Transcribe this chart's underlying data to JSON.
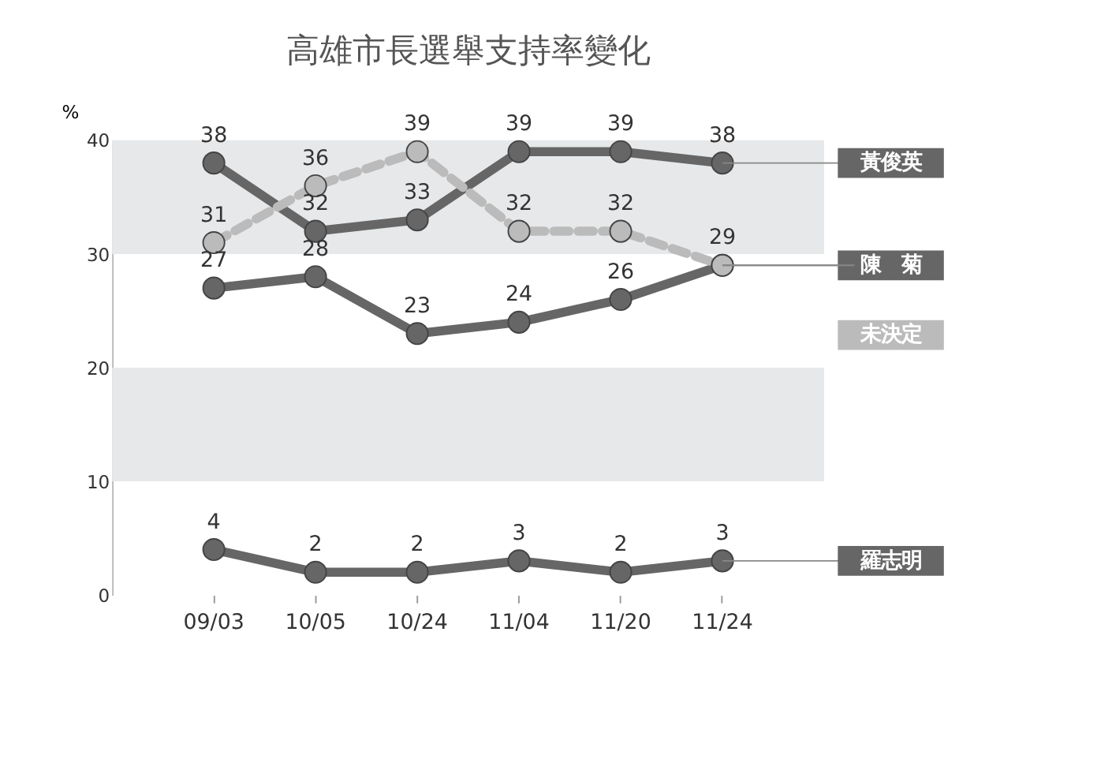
{
  "chart_data": {
    "type": "line",
    "title": "高雄市長選舉支持率變化",
    "ylabel": "%",
    "categories": [
      "09/03",
      "10/05",
      "10/24",
      "11/04",
      "11/20",
      "11/24"
    ],
    "series": [
      {
        "name": "黃俊英",
        "color": "#666666",
        "values": [
          38,
          32,
          33,
          39,
          39,
          38
        ],
        "value_labels": [
          "38",
          "32",
          "33",
          "39",
          "39",
          "38"
        ]
      },
      {
        "name": "陳　菊",
        "color": "#666666",
        "values": [
          27,
          28,
          23,
          24,
          26,
          29
        ],
        "value_labels": [
          "27",
          "28",
          "23",
          "24",
          "26",
          "29"
        ]
      },
      {
        "name": "未決定",
        "color": "#bbbbbb",
        "line_style": "dashed",
        "values": [
          31,
          36,
          39,
          32,
          32,
          29
        ],
        "value_labels": [
          "31",
          "36",
          "39",
          "32",
          "32",
          null
        ]
      },
      {
        "name": "羅志明",
        "color": "#666666",
        "values": [
          4,
          2,
          2,
          3,
          2,
          3
        ],
        "value_labels": [
          "4",
          "2",
          "2",
          "3",
          "2",
          "3"
        ]
      }
    ],
    "ylim": [
      0,
      40
    ],
    "yticks": [
      0,
      10,
      20,
      30,
      40
    ],
    "marker": "circle",
    "grid": false,
    "legend": false,
    "bands": [
      {
        "axis": "y",
        "from": 30,
        "to": 40,
        "color": "#e6e8ea"
      },
      {
        "axis": "y",
        "from": 10,
        "to": 20,
        "color": "#e6e8ea"
      }
    ]
  }
}
